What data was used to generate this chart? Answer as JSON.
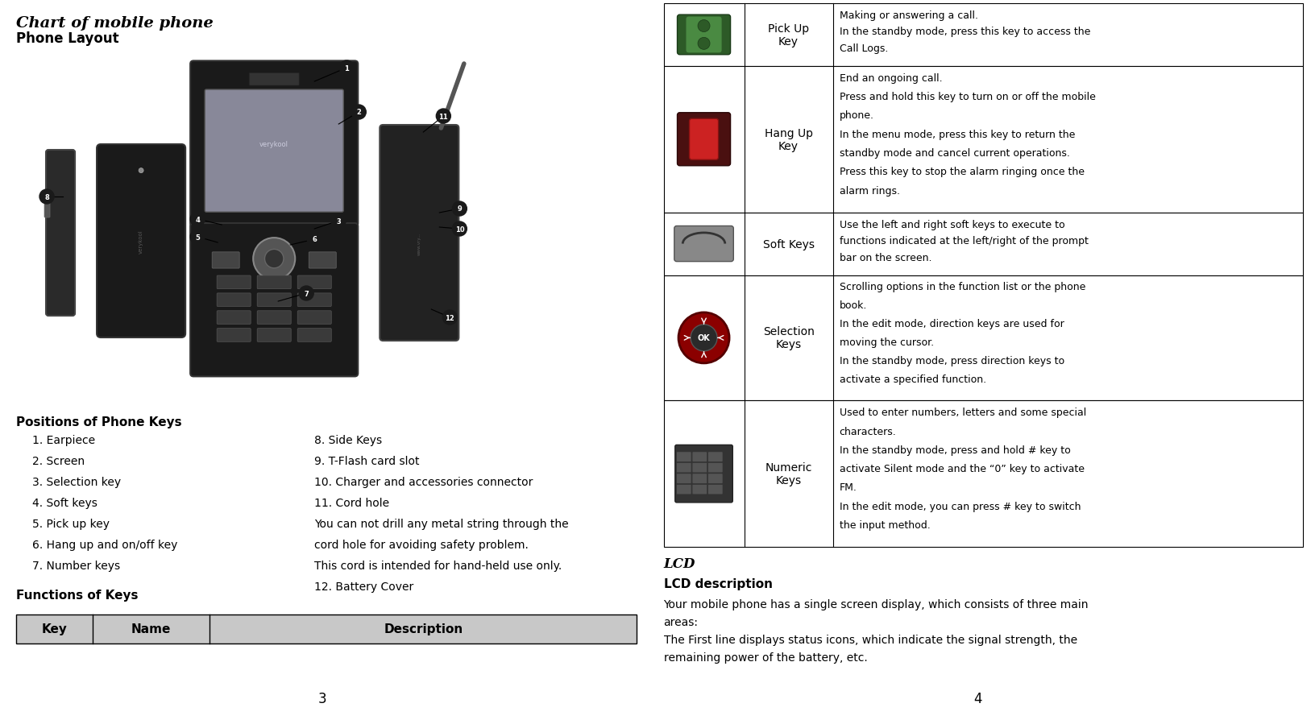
{
  "bg_color": "#ffffff",
  "left_page": {
    "title": "Chart of mobile phone",
    "subtitle": "Phone Layout",
    "positions_header": "Positions of Phone Keys",
    "left_keys": [
      "1. Earpiece",
      "2. Screen",
      "3. Selection key",
      "4. Soft keys",
      "5. Pick up key",
      "6. Hang up and on/off key",
      "7. Number keys"
    ],
    "right_keys_lines": [
      "8. Side Keys",
      "9. T-Flash card slot",
      "10. Charger and accessories connector",
      "11. Cord hole",
      "You can not drill any metal string through the",
      "cord hole for avoiding safety problem.",
      "This cord is intended for hand-held use only.",
      "12. Battery Cover"
    ],
    "functions_header": "Functions of Keys",
    "table_headers": [
      "Key",
      "Name",
      "Description"
    ],
    "page_number": "3"
  },
  "right_page": {
    "rows": [
      {
        "name": "Pick Up\nKey",
        "description": "Making or answering a call.\nIn the standby mode, press this key to access the\nCall Logs."
      },
      {
        "name": "Hang Up\nKey",
        "description": "End an ongoing call.\nPress and hold this key to turn on or off the mobile\nphone.\nIn the menu mode, press this key to return the\nstandby mode and cancel current operations.\nPress this key to stop the alarm ringing once the\nalarm rings."
      },
      {
        "name": "Soft Keys",
        "description": "Use the left and right soft keys to execute to\nfunctions indicated at the left/right of the prompt\nbar on the screen."
      },
      {
        "name": "Selection\nKeys",
        "description": "Scrolling options in the function list or the phone\nbook.\nIn the edit mode, direction keys are used for\nmoving the cursor.\nIn the standby mode, press direction keys to\nactivate a specified function."
      },
      {
        "name": "Numeric\nKeys",
        "description": "Used to enter numbers, letters and some special\ncharacters.\nIn the standby mode, press and hold # key to\nactivate Silent mode and the “0” key to activate\nFM.\nIn the edit mode, you can press # key to switch\nthe input method."
      }
    ],
    "lcd_title": "LCD",
    "lcd_desc_header": "LCD description",
    "lcd_desc_lines": [
      "Your mobile phone has a single screen display, which consists of three main",
      "areas:",
      "The First line displays status icons, which indicate the signal strength, the",
      "remaining power of the battery, etc."
    ],
    "page_number": "4"
  }
}
